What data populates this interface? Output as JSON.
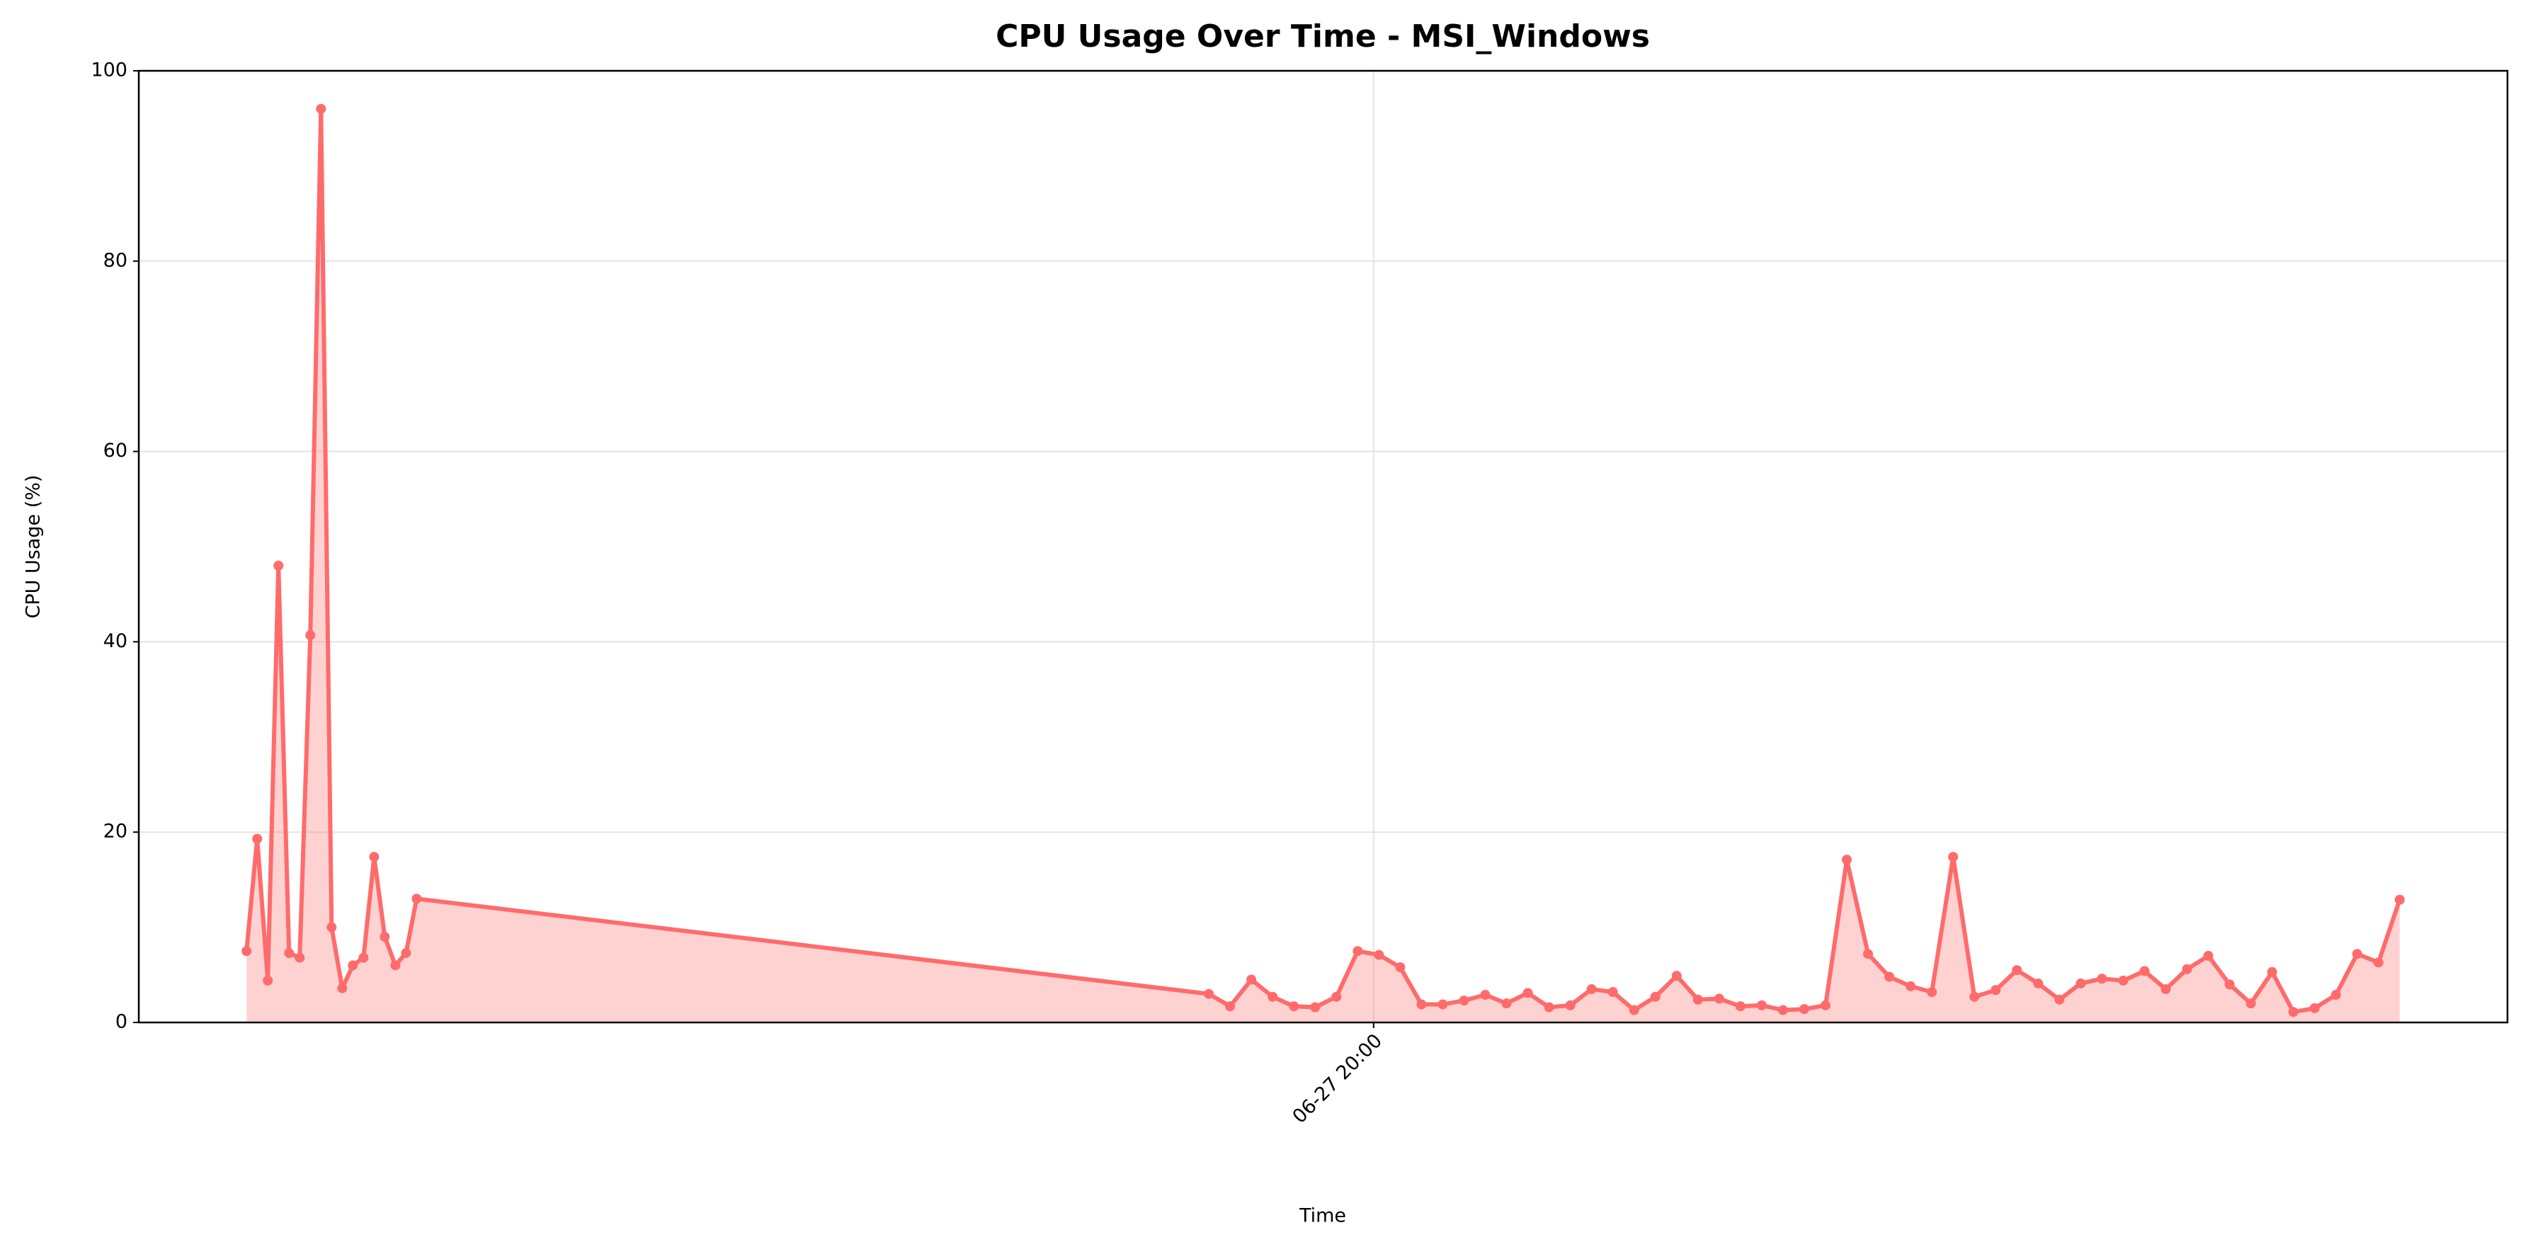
{
  "chart_data": {
    "type": "line",
    "title": "CPU Usage Over Time - MSI_Windows",
    "x_label": "Time",
    "y_label": "CPU Usage (%)",
    "x": [
      "06-27 19:07:00",
      "06-27 19:07:30",
      "06-27 19:08:00",
      "06-27 19:08:30",
      "06-27 19:09:00",
      "06-27 19:09:30",
      "06-27 19:10:00",
      "06-27 19:10:30",
      "06-27 19:11:00",
      "06-27 19:11:30",
      "06-27 19:12:00",
      "06-27 19:12:30",
      "06-27 19:13:00",
      "06-27 19:13:30",
      "06-27 19:14:00",
      "06-27 19:14:30",
      "06-27 19:15:00",
      "06-27 19:52:15",
      "06-27 19:53:15",
      "06-27 19:54:15",
      "06-27 19:55:15",
      "06-27 19:56:15",
      "06-27 19:57:15",
      "06-27 19:58:15",
      "06-27 19:59:15",
      "06-27 20:00:15",
      "06-27 20:01:15",
      "06-27 20:02:15",
      "06-27 20:03:15",
      "06-27 20:04:15",
      "06-27 20:05:15",
      "06-27 20:06:15",
      "06-27 20:07:15",
      "06-27 20:08:15",
      "06-27 20:09:15",
      "06-27 20:10:15",
      "06-27 20:11:15",
      "06-27 20:12:15",
      "06-27 20:13:15",
      "06-27 20:14:15",
      "06-27 20:15:15",
      "06-27 20:16:15",
      "06-27 20:17:15",
      "06-27 20:18:15",
      "06-27 20:19:15",
      "06-27 20:20:15",
      "06-27 20:21:15",
      "06-27 20:22:15",
      "06-27 20:23:15",
      "06-27 20:24:15",
      "06-27 20:25:15",
      "06-27 20:26:15",
      "06-27 20:27:15",
      "06-27 20:28:15",
      "06-27 20:29:15",
      "06-27 20:30:15",
      "06-27 20:31:15",
      "06-27 20:32:15",
      "06-27 20:33:15",
      "06-27 20:34:15",
      "06-27 20:35:15",
      "06-27 20:36:15",
      "06-27 20:37:15",
      "06-27 20:38:15",
      "06-27 20:39:15",
      "06-27 20:40:15",
      "06-27 20:41:15",
      "06-27 20:42:15",
      "06-27 20:43:15",
      "06-27 20:44:15",
      "06-27 20:45:15",
      "06-27 20:46:15",
      "06-27 20:47:15",
      "06-27 20:48:15"
    ],
    "series": [
      {
        "name": "CPU Usage",
        "color": "#ff6b6b",
        "values": [
          7.5,
          19.3,
          4.4,
          48,
          7.3,
          6.8,
          40.7,
          96,
          10,
          3.6,
          6,
          6.8,
          17.4,
          9,
          6,
          7.3,
          13,
          3.0,
          1.7,
          4.5,
          2.7,
          1.7,
          1.6,
          2.7,
          7.5,
          7.1,
          5.8,
          1.9,
          1.9,
          2.3,
          2.9,
          2.0,
          3.1,
          1.6,
          1.8,
          3.5,
          3.2,
          1.3,
          2.7,
          4.9,
          2.4,
          2.5,
          1.7,
          1.8,
          1.3,
          1.4,
          1.8,
          17.1,
          7.2,
          4.8,
          3.8,
          3.2,
          17.4,
          2.7,
          3.4,
          5.5,
          4.1,
          2.4,
          4.1,
          4.6,
          4.4,
          5.4,
          3.5,
          5.6,
          7.0,
          4.0,
          2.0,
          5.3,
          1.1,
          1.5,
          2.9,
          7.2,
          6.3,
          12.9
        ]
      }
    ],
    "xlim": [
      "06-27 19:01:56",
      "06-27 20:53:19"
    ],
    "xticks": [
      {
        "value": "06-27 20:00:00",
        "label": "06-27 20:00"
      }
    ],
    "ylim": [
      0,
      100
    ],
    "yticks": [
      0,
      20,
      40,
      60,
      80,
      100
    ],
    "grid": true,
    "fill": true
  }
}
